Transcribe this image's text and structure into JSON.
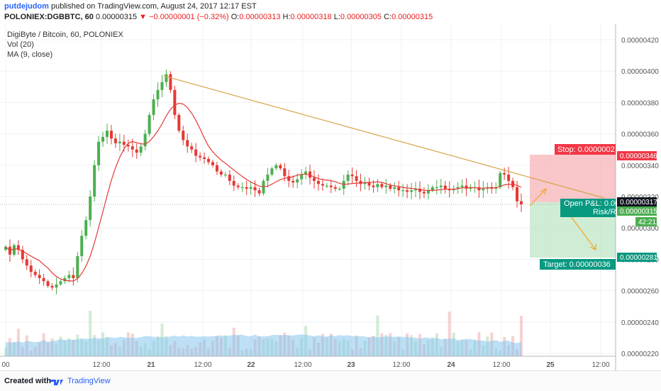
{
  "header": {
    "username": "putdejudom",
    "published_text": "published on TradingView.com, August 24, 2017 12:17 EST",
    "symbol": "POLONIEX:DGBBTC, 60",
    "last": "0.00000315",
    "change": "▼ −0.00000001 (−0.32%)",
    "open_label": "O:",
    "open": "0.00000313",
    "high_label": "H:",
    "high": "0.00000318",
    "low_label": "L:",
    "low": "0.00000305",
    "close_label": "C:",
    "close": "0.00000315"
  },
  "legend": {
    "title": "DigiByte / Bitcoin, 60, POLONIEX",
    "volume": "Vol (20)",
    "ma": "MA (9, close)"
  },
  "chart_data": {
    "type": "candlestick",
    "y_ticks": [
      "0.00000420",
      "0.00000400",
      "0.00000380",
      "0.00000360",
      "0.00000340",
      "0.00000320",
      "0.00000300",
      "0.00000280",
      "0.00000260",
      "0.00000240",
      "0.00000220"
    ],
    "y_range": [
      2.16e-06,
      4.28e-06
    ],
    "x_ticks": [
      "00",
      "12:00",
      "21",
      "12:00",
      "22",
      "12:00",
      "23",
      "12:00",
      "24",
      "12:00",
      "25",
      "12:00"
    ],
    "price_tags": {
      "stop_level": "0.00000346",
      "pnl_level": "0.00000317",
      "last_price": "0.00000315",
      "countdown": "42:21",
      "target_level": "0.00000281"
    },
    "stop_label": "Stop: 0.0000002",
    "open_pnl_label": "Open P&L: 0.00",
    "risk_label": "Risk/R",
    "target_label": "Target: 0.00000036",
    "colors": {
      "up": "#4caf50",
      "down": "#e53935",
      "ma": "#e53935",
      "trend": "#d7a44a",
      "volume_area": "#87c7ef"
    }
  },
  "footer": {
    "created_with": "Created with",
    "brand": "TradingView"
  }
}
